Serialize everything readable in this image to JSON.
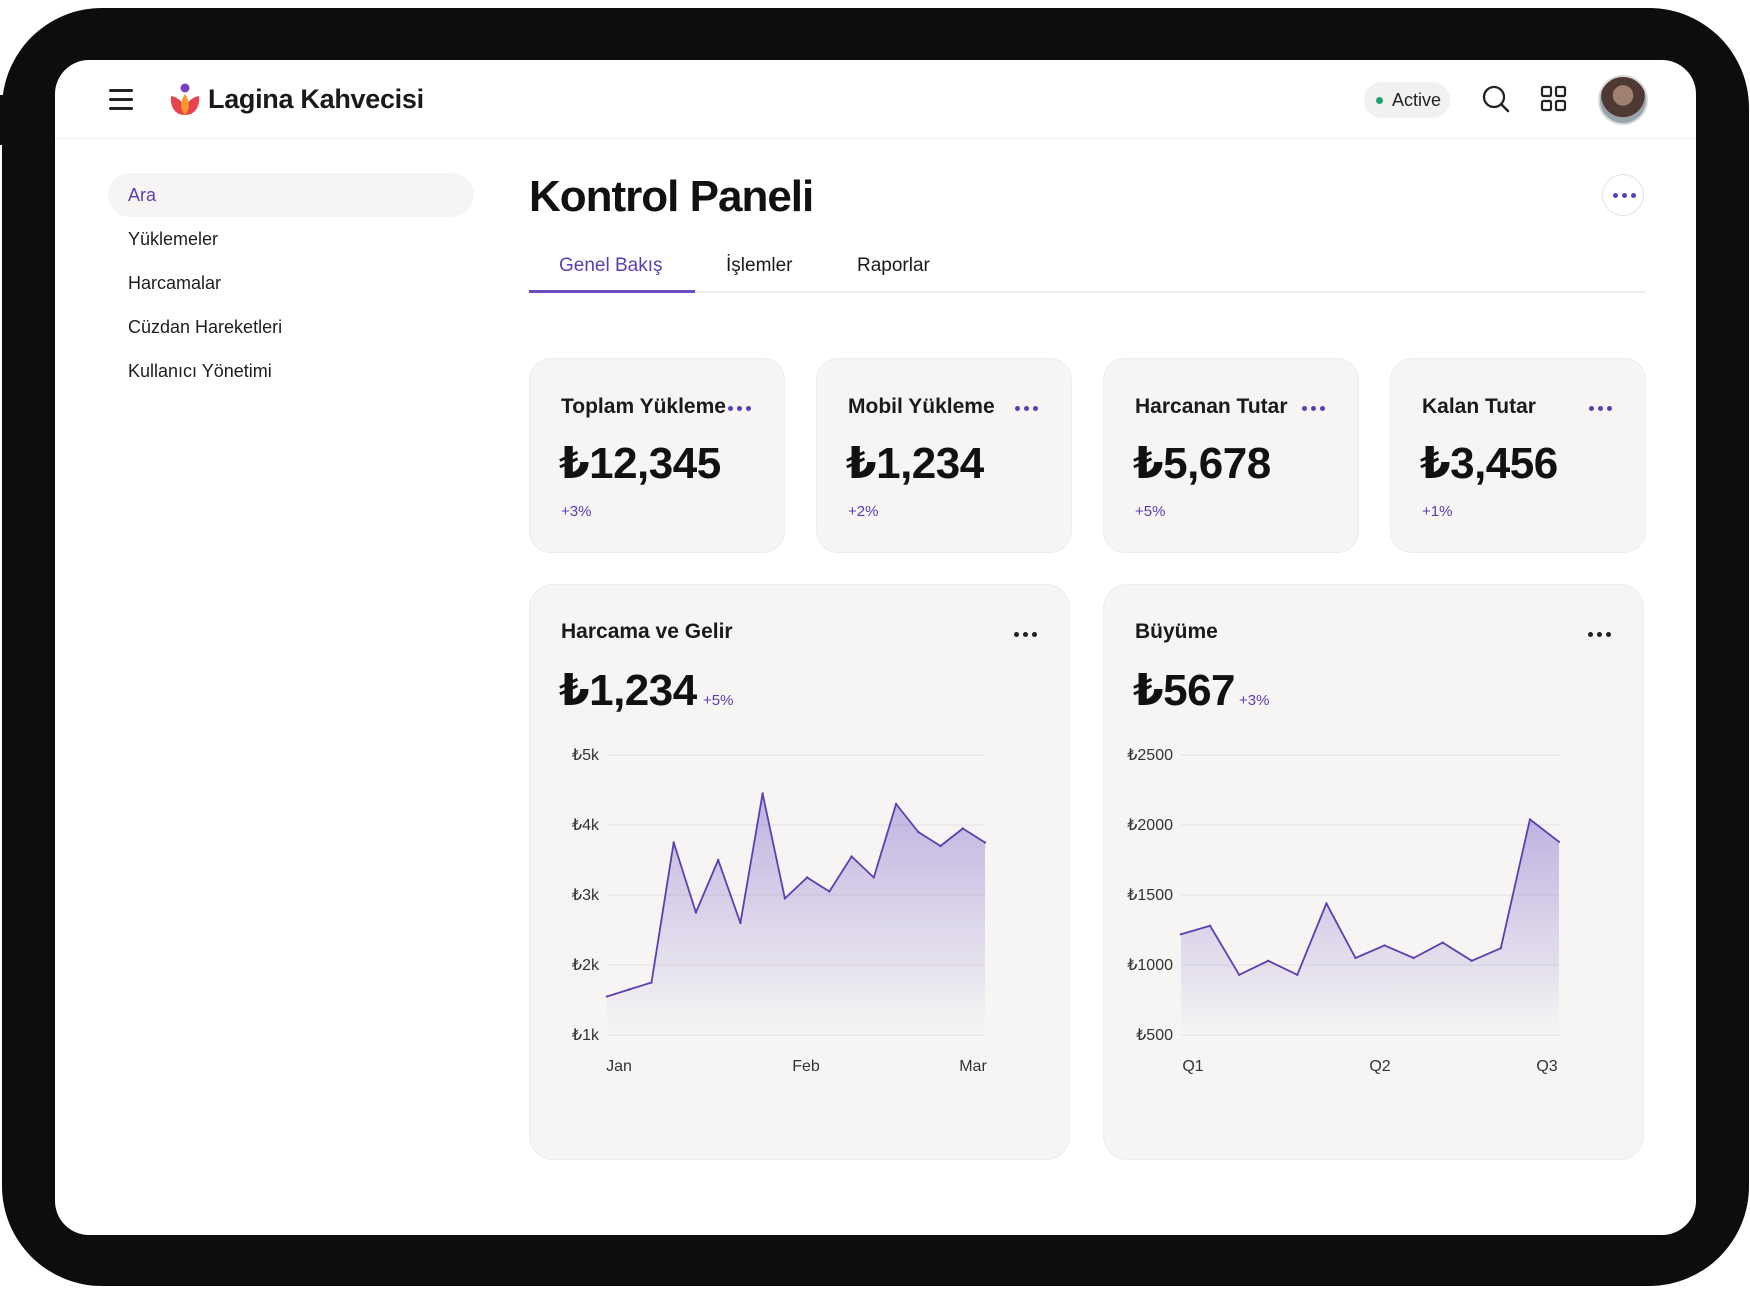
{
  "app": {
    "brand": "Lagina Kahvecisi",
    "status": "Active"
  },
  "header_icons": [
    "menu-icon",
    "search-icon",
    "grid-icon",
    "avatar"
  ],
  "sidebar": {
    "items": [
      {
        "label": "Ara",
        "active": true
      },
      {
        "label": "Yüklemeler",
        "active": false
      },
      {
        "label": "Harcamalar",
        "active": false
      },
      {
        "label": "Cüzdan Hareketleri",
        "active": false
      },
      {
        "label": "Kullanıcı Yönetimi",
        "active": false
      }
    ]
  },
  "page": {
    "title": "Kontrol Paneli"
  },
  "tabs": [
    {
      "label": "Genel Bakış",
      "active": true
    },
    {
      "label": "İşlemler",
      "active": false
    },
    {
      "label": "Raporlar",
      "active": false
    }
  ],
  "stats": [
    {
      "title": "Toplam Yükleme",
      "value": "₺12,345",
      "change": "+3%"
    },
    {
      "title": "Mobil Yükleme",
      "value": "₺1,234",
      "change": "+2%"
    },
    {
      "title": "Harcanan Tutar",
      "value": "₺5,678",
      "change": "+5%"
    },
    {
      "title": "Kalan Tutar",
      "value": "₺3,456",
      "change": "+1%"
    }
  ],
  "colors": {
    "accent": "#5b3fb0",
    "card_bg": "#f6f5f3",
    "status_dot": "#1ea56f"
  },
  "chart_data": [
    {
      "type": "area",
      "title": "Harcama ve Gelir",
      "value": "₺1,234",
      "change": "+5%",
      "x_ticks": [
        "Jan",
        "Feb",
        "Mar"
      ],
      "y_ticks": [
        "₺5k",
        "₺4k",
        "₺3k",
        "₺2k",
        "₺1k"
      ],
      "ylim": [
        1000,
        5000
      ],
      "grid": true,
      "series": [
        {
          "values": [
            1550,
            1650,
            1750,
            3750,
            2750,
            3500,
            2600,
            4450,
            2950,
            3250,
            3050,
            3550,
            3250,
            4300,
            3900,
            3700,
            3950,
            3750
          ]
        }
      ]
    },
    {
      "type": "area",
      "title": "Büyüme",
      "value": "₺567",
      "change": "+3%",
      "x_ticks": [
        "Q1",
        "Q2",
        "Q3"
      ],
      "y_ticks": [
        "₺2500",
        "₺2000",
        "₺1500",
        "₺1000",
        "₺500"
      ],
      "ylim": [
        500,
        2500
      ],
      "grid": true,
      "series": [
        {
          "values": [
            1220,
            1280,
            930,
            1030,
            930,
            1440,
            1050,
            1140,
            1050,
            1160,
            1030,
            1120,
            2040,
            1880
          ]
        }
      ]
    }
  ]
}
